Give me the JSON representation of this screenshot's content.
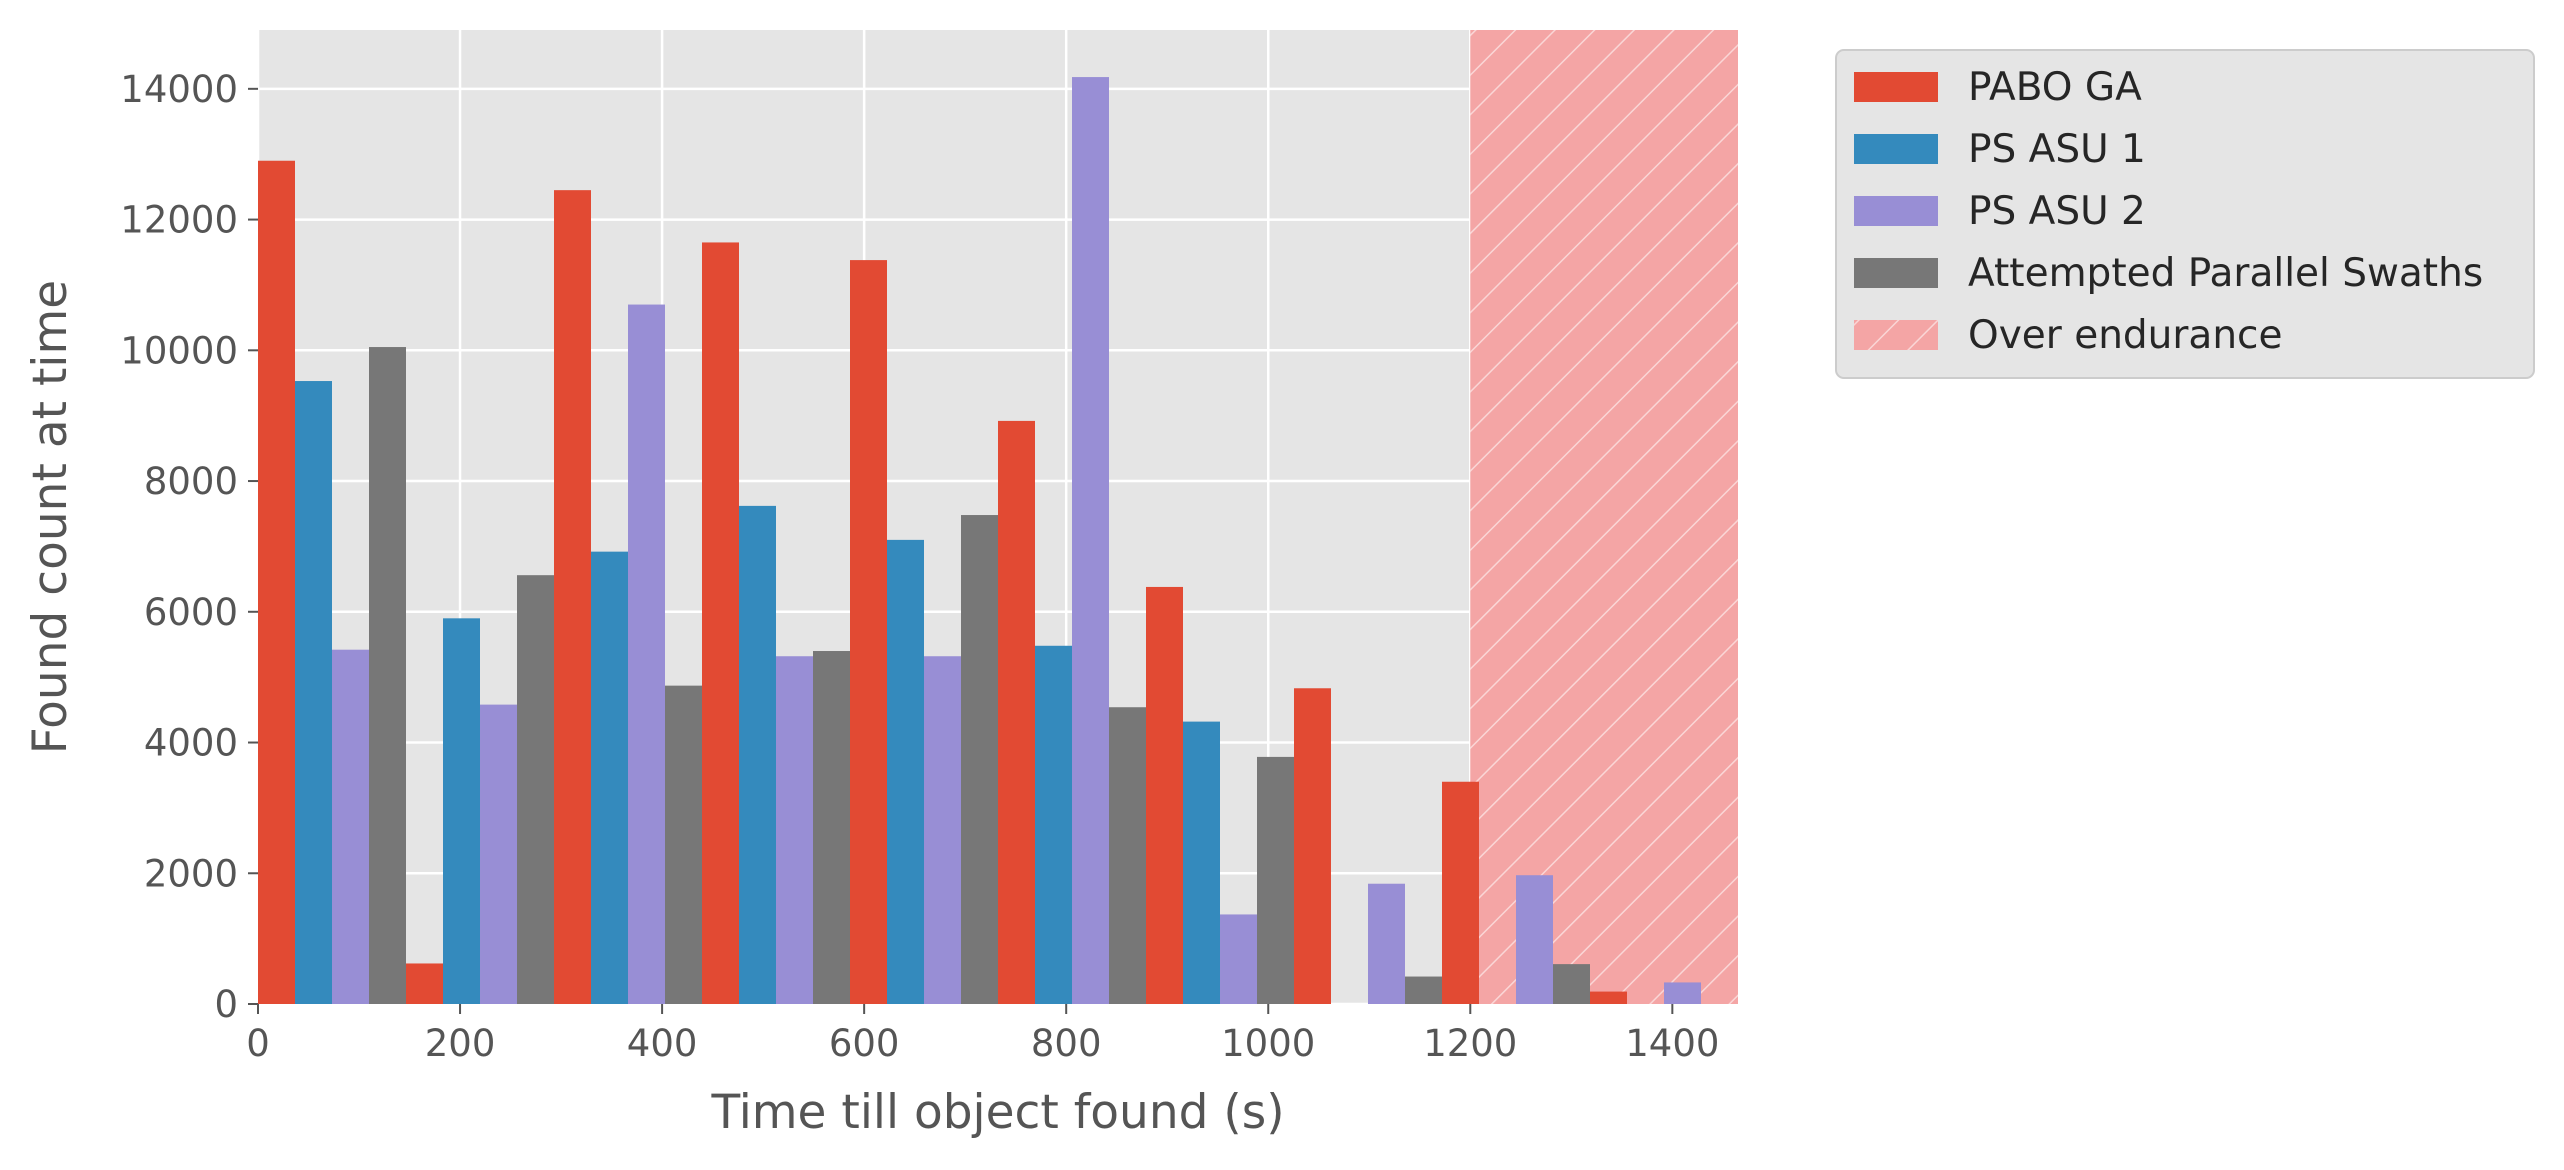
{
  "chart_data": {
    "type": "bar",
    "title": "",
    "xlabel": "Time till object found (s)",
    "ylabel": "Found count at time",
    "xlim": [
      0,
      1465
    ],
    "ylim": [
      0,
      14900
    ],
    "xticks": [
      0,
      200,
      400,
      600,
      800,
      1000,
      1200,
      1400
    ],
    "yticks": [
      0,
      2000,
      4000,
      6000,
      8000,
      10000,
      12000,
      14000
    ],
    "grid": true,
    "legend_position": "outside-right-top",
    "bin_starts": [
      0,
      146.5,
      293,
      439.5,
      586,
      732.5,
      879,
      1025.5,
      1172,
      1318.5
    ],
    "bin_width": 146.5,
    "series": [
      {
        "name": "PABO GA",
        "color": "#E24A33",
        "values": [
          12900,
          620,
          12450,
          11650,
          11380,
          8920,
          6380,
          4830,
          3400,
          190
        ]
      },
      {
        "name": "PS ASU 1",
        "color": "#348ABD",
        "values": [
          9530,
          5900,
          6920,
          7620,
          7100,
          5480,
          4320,
          0,
          0,
          0
        ]
      },
      {
        "name": "PS ASU 2",
        "color": "#988ED5",
        "values": [
          5420,
          4580,
          10700,
          5320,
          5320,
          14180,
          1370,
          1840,
          1970,
          330
        ]
      },
      {
        "name": "Attempted Parallel Swaths",
        "color": "#777777",
        "values": [
          10050,
          6560,
          4870,
          5400,
          7480,
          4540,
          3780,
          420,
          610,
          0
        ]
      }
    ],
    "shaded_region": {
      "label": "Over endurance",
      "x_start": 1200,
      "x_end": 1465,
      "color": "#F4A5A5"
    }
  }
}
